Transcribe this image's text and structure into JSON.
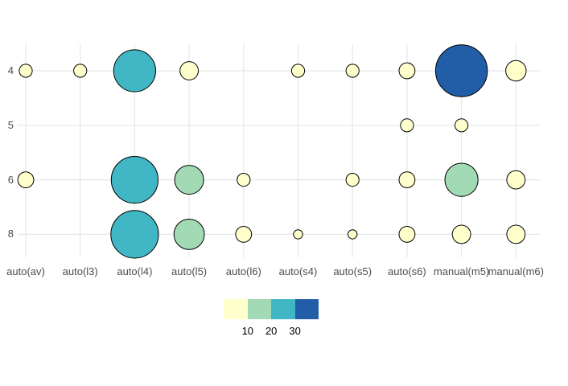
{
  "chart_data": {
    "type": "bubble",
    "title": "",
    "xlabel": "",
    "ylabel": "",
    "grid": true,
    "x_axis": {
      "categories": [
        "auto(av)",
        "auto(l3)",
        "auto(l4)",
        "auto(l5)",
        "auto(l6)",
        "auto(s4)",
        "auto(s5)",
        "auto(s6)",
        "manual(m5)",
        "manual(m6)"
      ]
    },
    "y_axis": {
      "tick_labels": [
        "4",
        "5",
        "6",
        "8"
      ]
    },
    "points": [
      {
        "trans": "auto(av)",
        "cyl": "4",
        "n": 2
      },
      {
        "trans": "auto(l3)",
        "cyl": "4",
        "n": 2
      },
      {
        "trans": "auto(l4)",
        "cyl": "4",
        "n": 21
      },
      {
        "trans": "auto(l5)",
        "cyl": "4",
        "n": 4
      },
      {
        "trans": "auto(s4)",
        "cyl": "4",
        "n": 2
      },
      {
        "trans": "auto(s5)",
        "cyl": "4",
        "n": 2
      },
      {
        "trans": "auto(s6)",
        "cyl": "4",
        "n": 3
      },
      {
        "trans": "manual(m5)",
        "cyl": "4",
        "n": 32
      },
      {
        "trans": "manual(m6)",
        "cyl": "4",
        "n": 5
      },
      {
        "trans": "auto(s6)",
        "cyl": "5",
        "n": 2
      },
      {
        "trans": "manual(m5)",
        "cyl": "5",
        "n": 2
      },
      {
        "trans": "auto(av)",
        "cyl": "6",
        "n": 3
      },
      {
        "trans": "auto(l4)",
        "cyl": "6",
        "n": 26
      },
      {
        "trans": "auto(l5)",
        "cyl": "6",
        "n": 10
      },
      {
        "trans": "auto(l6)",
        "cyl": "6",
        "n": 2
      },
      {
        "trans": "auto(s5)",
        "cyl": "6",
        "n": 2
      },
      {
        "trans": "auto(s6)",
        "cyl": "6",
        "n": 3
      },
      {
        "trans": "manual(m5)",
        "cyl": "6",
        "n": 13
      },
      {
        "trans": "manual(m6)",
        "cyl": "6",
        "n": 4
      },
      {
        "trans": "auto(l4)",
        "cyl": "8",
        "n": 27
      },
      {
        "trans": "auto(l5)",
        "cyl": "8",
        "n": 11
      },
      {
        "trans": "auto(l6)",
        "cyl": "8",
        "n": 3
      },
      {
        "trans": "auto(s4)",
        "cyl": "8",
        "n": 1
      },
      {
        "trans": "auto(s5)",
        "cyl": "8",
        "n": 1
      },
      {
        "trans": "auto(s6)",
        "cyl": "8",
        "n": 3
      },
      {
        "trans": "manual(m5)",
        "cyl": "8",
        "n": 4
      },
      {
        "trans": "manual(m6)",
        "cyl": "8",
        "n": 4
      }
    ],
    "legend": {
      "position": "bottom-center",
      "tick_labels": [
        "10",
        "20",
        "30"
      ],
      "bins": [
        {
          "range": "<10",
          "color": "#FFFFCC"
        },
        {
          "range": "10-20",
          "color": "#A1DAB4"
        },
        {
          "range": "20-30",
          "color": "#41B6C4"
        },
        {
          "range": ">30",
          "color": "#225EA8"
        }
      ]
    }
  },
  "colors": {
    "background": "#FFFFFF",
    "gridline": "#E6E6E6",
    "axis_text": "#4D4D4D",
    "legend_text": "#000000",
    "bubble_stroke": "#000000"
  }
}
